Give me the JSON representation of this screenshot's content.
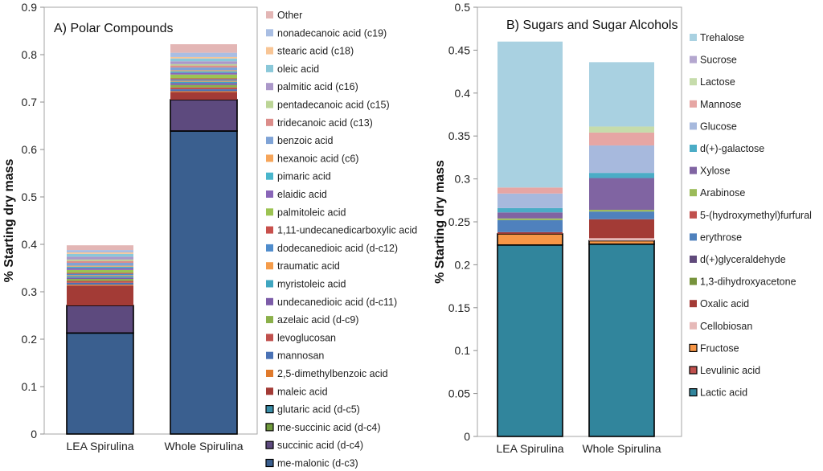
{
  "chart_data": [
    {
      "type": "bar",
      "stacked": true,
      "title": "A) Polar Compounds",
      "ylabel": "% Starting dry mass",
      "ylim": [
        0,
        0.9
      ],
      "yticks": [
        "0",
        "0.1",
        "0.2",
        "0.3",
        "0.4",
        "0.5",
        "0.6",
        "0.7",
        "0.8",
        "0.9"
      ],
      "ytick_values": [
        0,
        0.1,
        0.2,
        0.3,
        0.4,
        0.5,
        0.6,
        0.7,
        0.8,
        0.9
      ],
      "categories": [
        "LEA Spirulina",
        "Whole Spirulina"
      ],
      "series": [
        {
          "name": "me-malonic (d-c3)",
          "color": "#3a5f8f",
          "outlined": true,
          "values": [
            0.213,
            0.639
          ]
        },
        {
          "name": "succinic acid (d-c4)",
          "color": "#5d4a7e",
          "outlined": true,
          "values": [
            0.058,
            0.066
          ]
        },
        {
          "name": "me-succinic acid (d-c4)",
          "color": "#6f9a3c",
          "outlined": true,
          "values": [
            0.0,
            0.0
          ]
        },
        {
          "name": "glutaric acid (d-c5)",
          "color": "#3a8ea8",
          "outlined": true,
          "values": [
            0.0,
            0.0
          ]
        },
        {
          "name": "maleic acid",
          "color": "#a33b36",
          "outlined": false,
          "values": [
            0.042,
            0.016
          ]
        },
        {
          "name": "2,5-dimethylbenzoic acid",
          "color": "#e07a2c",
          "outlined": false,
          "values": [
            0.002,
            0.002
          ]
        },
        {
          "name": "mannosan",
          "color": "#4a72b5",
          "outlined": false,
          "values": [
            0.004,
            0.004
          ]
        },
        {
          "name": "levoglucosan",
          "color": "#c0504d",
          "outlined": false,
          "values": [
            0.004,
            0.004
          ]
        },
        {
          "name": "azelaic acid (d-c9)",
          "color": "#8bb04a",
          "outlined": false,
          "values": [
            0.004,
            0.005
          ]
        },
        {
          "name": "undecanedioic acid (d-c11)",
          "color": "#7c5ca8",
          "outlined": false,
          "values": [
            0.003,
            0.004
          ]
        },
        {
          "name": "myristoleic acid",
          "color": "#3fa6c0",
          "outlined": false,
          "values": [
            0.003,
            0.003
          ]
        },
        {
          "name": "traumatic acid",
          "color": "#f59c4a",
          "outlined": false,
          "values": [
            0.002,
            0.002
          ]
        },
        {
          "name": "dodecanedioic acid (d-c12)",
          "color": "#4f8ccc",
          "outlined": false,
          "values": [
            0.003,
            0.003
          ]
        },
        {
          "name": "1,11-undecanedicarboxylic acid",
          "color": "#c8504c",
          "outlined": false,
          "values": [
            0.002,
            0.002
          ]
        },
        {
          "name": "palmitoleic acid",
          "color": "#9cc352",
          "outlined": false,
          "values": [
            0.006,
            0.008
          ]
        },
        {
          "name": "elaidic acid",
          "color": "#8966b8",
          "outlined": false,
          "values": [
            0.004,
            0.004
          ]
        },
        {
          "name": "pimaric acid",
          "color": "#4ab6cc",
          "outlined": false,
          "values": [
            0.003,
            0.003
          ]
        },
        {
          "name": "hexanoic acid (c6)",
          "color": "#f6a55a",
          "outlined": false,
          "values": [
            0.002,
            0.002
          ]
        },
        {
          "name": "benzoic acid",
          "color": "#7fa3d6",
          "outlined": false,
          "values": [
            0.006,
            0.006
          ]
        },
        {
          "name": "tridecanoic acid (c13)",
          "color": "#dc8d8a",
          "outlined": false,
          "values": [
            0.004,
            0.004
          ]
        },
        {
          "name": "pentadecanoic acid (c15)",
          "color": "#bcd596",
          "outlined": false,
          "values": [
            0.003,
            0.003
          ]
        },
        {
          "name": "palmitic acid (c16)",
          "color": "#ab98c9",
          "outlined": false,
          "values": [
            0.006,
            0.006
          ]
        },
        {
          "name": "oleic acid",
          "color": "#8ac8d9",
          "outlined": false,
          "values": [
            0.006,
            0.006
          ]
        },
        {
          "name": "stearic acid (c18)",
          "color": "#f8c595",
          "outlined": false,
          "values": [
            0.003,
            0.003
          ]
        },
        {
          "name": "nonadecanoic acid (c19)",
          "color": "#a9bee3",
          "outlined": false,
          "values": [
            0.005,
            0.009
          ]
        },
        {
          "name": "Other",
          "color": "#e3b6b5",
          "outlined": false,
          "values": [
            0.01,
            0.018
          ]
        }
      ]
    },
    {
      "type": "bar",
      "stacked": true,
      "title": "B) Sugars and Sugar Alcohols",
      "ylabel": "% Starting dry mass",
      "ylim": [
        0,
        0.5
      ],
      "yticks": [
        "0",
        "0.05",
        "0.1",
        "0.15",
        "0.2",
        "0.25",
        "0.3",
        "0.35",
        "0.4",
        "0.45",
        "0.5"
      ],
      "ytick_values": [
        0,
        0.05,
        0.1,
        0.15,
        0.2,
        0.25,
        0.3,
        0.35,
        0.4,
        0.45,
        0.5
      ],
      "categories": [
        "LEA Spirulina",
        "Whole Spirulina"
      ],
      "series": [
        {
          "name": "Lactic acid",
          "color": "#31859c",
          "outlined": true,
          "values": [
            0.223,
            0.224
          ]
        },
        {
          "name": "Levulinic acid",
          "color": "#c0504d",
          "outlined": true,
          "values": [
            0.0,
            0.0
          ]
        },
        {
          "name": "Fructose",
          "color": "#f79646",
          "outlined": true,
          "values": [
            0.013,
            0.004
          ]
        },
        {
          "name": "Cellobiosan",
          "color": "#e6b9b8",
          "outlined": false,
          "values": [
            0.0,
            0.003
          ]
        },
        {
          "name": "Oxalic acid",
          "color": "#a33b36",
          "outlined": false,
          "values": [
            0.002,
            0.022
          ]
        },
        {
          "name": "1,3-dihydroxyacetone",
          "color": "#77933c",
          "outlined": false,
          "values": [
            0.0,
            0.0
          ]
        },
        {
          "name": "d(+)glyceraldehyde",
          "color": "#604a7b",
          "outlined": false,
          "values": [
            0.0,
            0.0
          ]
        },
        {
          "name": "erythrose",
          "color": "#4f81bd",
          "outlined": false,
          "values": [
            0.014,
            0.009
          ]
        },
        {
          "name": "5-(hydroxymethyl)furfural",
          "color": "#c0504d",
          "outlined": false,
          "values": [
            0.0,
            0.0
          ]
        },
        {
          "name": "Arabinose",
          "color": "#9bbb59",
          "outlined": false,
          "values": [
            0.002,
            0.002
          ]
        },
        {
          "name": "Xylose",
          "color": "#8064a2",
          "outlined": false,
          "values": [
            0.007,
            0.037
          ]
        },
        {
          "name": "d(+)-galactose",
          "color": "#4bacc6",
          "outlined": false,
          "values": [
            0.005,
            0.006
          ]
        },
        {
          "name": "Glucose",
          "color": "#a7b9dd",
          "outlined": false,
          "values": [
            0.017,
            0.032
          ]
        },
        {
          "name": "Mannose",
          "color": "#e6a6a4",
          "outlined": false,
          "values": [
            0.007,
            0.015
          ]
        },
        {
          "name": "Lactose",
          "color": "#c6dcab",
          "outlined": false,
          "values": [
            0.0,
            0.007
          ]
        },
        {
          "name": "Sucrose",
          "color": "#b4a7cf",
          "outlined": false,
          "values": [
            0.0,
            0.0
          ]
        },
        {
          "name": "Trehalose",
          "color": "#a9d1e1",
          "outlined": false,
          "values": [
            0.17,
            0.075
          ]
        }
      ]
    }
  ]
}
